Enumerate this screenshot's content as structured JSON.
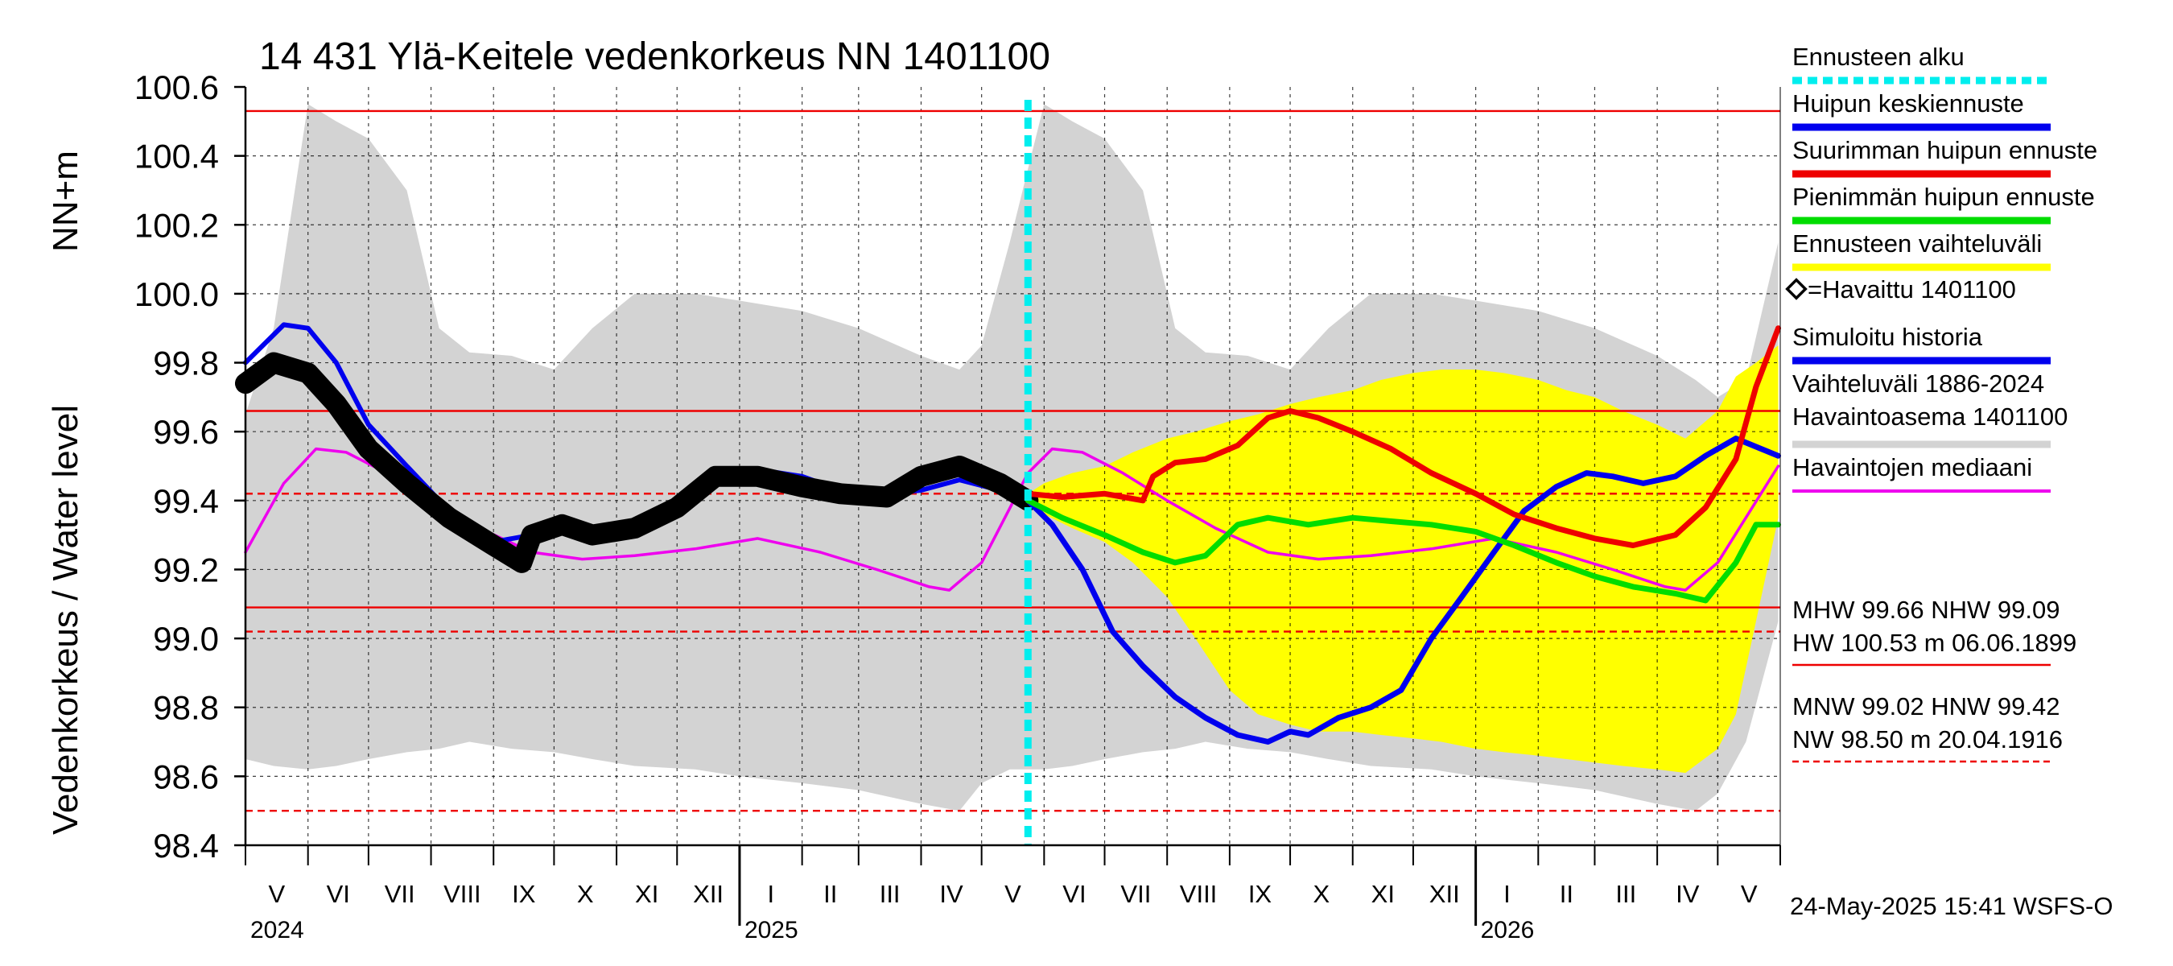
{
  "chart_data": {
    "type": "line",
    "title": "14 431 Ylä-Keitele vedenkorkeus NN 1401100",
    "ylabel_left": "Vedenkorkeus / Water level",
    "ylabel_unit": "NN+m",
    "ylim": [
      98.4,
      100.6
    ],
    "yticks": [
      "100.6",
      "100.4",
      "100.2",
      "100.0",
      "99.8",
      "99.6",
      "99.4",
      "99.2",
      "99.0",
      "98.8",
      "98.6",
      "98.4"
    ],
    "grid": true,
    "x_start": "2024-05-01",
    "x_end": "2026-05-31",
    "months": [
      "V",
      "VI",
      "VII",
      "VIII",
      "IX",
      "X",
      "XI",
      "XII",
      "I",
      "II",
      "III",
      "IV",
      "V",
      "VI",
      "VII",
      "VIII",
      "IX",
      "X",
      "XI",
      "XII",
      "I",
      "II",
      "III",
      "IV",
      "V"
    ],
    "years": [
      "2024",
      "2025",
      "2026"
    ],
    "forecast_start": "2025-05-24",
    "reference_lines": [
      {
        "name": "HW",
        "value": 100.53,
        "style": "solid"
      },
      {
        "name": "MHW",
        "value": 99.66,
        "style": "solid"
      },
      {
        "name": "HNW",
        "value": 99.42,
        "style": "dashed"
      },
      {
        "name": "NHW",
        "value": 99.09,
        "style": "solid"
      },
      {
        "name": "MNW",
        "value": 99.02,
        "style": "dashed"
      },
      {
        "name": "NW",
        "value": 98.5,
        "style": "dashed"
      }
    ],
    "series": [
      {
        "name": "Vaihteluväli 1886-2024",
        "kind": "band",
        "color": "#d3d3d3",
        "x": [
          "2024-05-01",
          "2024-05-15",
          "2024-06-01",
          "2024-06-15",
          "2024-07-01",
          "2024-07-20",
          "2024-08-05",
          "2024-08-20",
          "2024-09-10",
          "2024-10-01",
          "2024-10-20",
          "2024-11-10",
          "2024-12-10",
          "2025-01-01",
          "2025-02-01",
          "2025-03-01",
          "2025-04-01",
          "2025-04-20",
          "2025-05-01",
          "2025-05-15",
          "2025-06-01",
          "2025-06-15",
          "2025-07-01",
          "2025-07-20",
          "2025-08-05",
          "2025-08-20",
          "2025-09-10",
          "2025-10-01",
          "2025-10-20",
          "2025-11-10",
          "2025-12-10",
          "2026-01-01",
          "2026-02-01",
          "2026-03-01",
          "2026-04-01",
          "2026-04-20",
          "2026-05-01",
          "2026-05-15",
          "2026-05-31"
        ],
        "upper": [
          99.65,
          99.9,
          100.55,
          100.5,
          100.45,
          100.3,
          99.9,
          99.83,
          99.82,
          99.78,
          99.9,
          100.0,
          100.0,
          99.98,
          99.95,
          99.9,
          99.82,
          99.78,
          99.85,
          100.15,
          100.55,
          100.5,
          100.45,
          100.3,
          99.9,
          99.83,
          99.82,
          99.78,
          99.9,
          100.0,
          100.0,
          99.98,
          99.95,
          99.9,
          99.82,
          99.75,
          99.7,
          99.75,
          100.15
        ],
        "lower": [
          98.65,
          98.63,
          98.62,
          98.63,
          98.65,
          98.67,
          98.68,
          98.7,
          98.68,
          98.67,
          98.65,
          98.63,
          98.62,
          98.6,
          98.58,
          98.56,
          98.52,
          98.5,
          98.58,
          98.62,
          98.62,
          98.63,
          98.65,
          98.67,
          98.68,
          98.7,
          98.68,
          98.67,
          98.65,
          98.63,
          98.62,
          98.6,
          98.58,
          98.56,
          98.52,
          98.5,
          98.55,
          98.7,
          99.05
        ]
      },
      {
        "name": "Ennusteen vaihteluväli",
        "kind": "band",
        "color": "#ffff00",
        "x": [
          "2025-05-24",
          "2025-06-01",
          "2025-06-15",
          "2025-07-01",
          "2025-07-15",
          "2025-08-01",
          "2025-08-15",
          "2025-09-01",
          "2025-09-15",
          "2025-10-01",
          "2025-10-15",
          "2025-11-01",
          "2025-11-15",
          "2025-12-01",
          "2025-12-15",
          "2026-01-01",
          "2026-01-15",
          "2026-02-01",
          "2026-02-15",
          "2026-03-01",
          "2026-03-15",
          "2026-04-01",
          "2026-04-15",
          "2026-05-01",
          "2026-05-10",
          "2026-05-20",
          "2026-05-31"
        ],
        "upper": [
          99.42,
          99.45,
          99.48,
          99.5,
          99.54,
          99.58,
          99.6,
          99.63,
          99.65,
          99.68,
          99.7,
          99.72,
          99.75,
          99.77,
          99.78,
          99.78,
          99.77,
          99.75,
          99.72,
          99.7,
          99.66,
          99.62,
          99.58,
          99.66,
          99.76,
          99.8,
          99.85
        ],
        "lower": [
          99.4,
          99.36,
          99.32,
          99.28,
          99.22,
          99.12,
          99.0,
          98.85,
          98.78,
          98.75,
          98.73,
          98.73,
          98.72,
          98.71,
          98.7,
          98.68,
          98.67,
          98.66,
          98.65,
          98.64,
          98.63,
          98.62,
          98.61,
          98.68,
          98.78,
          99.05,
          99.35
        ]
      },
      {
        "name": "Havaintojen mediaani",
        "kind": "line",
        "color": "#ee00ee",
        "x": [
          "2024-05-01",
          "2024-05-20",
          "2024-06-05",
          "2024-06-20",
          "2024-07-10",
          "2024-08-01",
          "2024-08-25",
          "2024-09-20",
          "2024-10-15",
          "2024-11-10",
          "2024-12-10",
          "2025-01-10",
          "2025-02-10",
          "2025-03-10",
          "2025-04-05",
          "2025-04-15",
          "2025-05-01",
          "2025-05-24",
          "2025-06-05",
          "2025-06-20",
          "2025-07-10",
          "2025-08-01",
          "2025-08-25",
          "2025-09-20",
          "2025-10-15",
          "2025-11-10",
          "2025-12-10",
          "2026-01-10",
          "2026-02-10",
          "2026-03-10",
          "2026-04-05",
          "2026-04-15",
          "2026-05-01",
          "2026-05-31"
        ],
        "y": [
          99.25,
          99.45,
          99.55,
          99.54,
          99.48,
          99.4,
          99.32,
          99.25,
          99.23,
          99.24,
          99.26,
          99.29,
          99.25,
          99.2,
          99.15,
          99.14,
          99.22,
          99.48,
          99.55,
          99.54,
          99.48,
          99.4,
          99.32,
          99.25,
          99.23,
          99.24,
          99.26,
          99.29,
          99.25,
          99.2,
          99.15,
          99.14,
          99.22,
          99.5
        ]
      },
      {
        "name": "Simuloitu historia",
        "kind": "line",
        "color": "#0000ee",
        "x": [
          "2024-05-01",
          "2024-05-20",
          "2024-06-01",
          "2024-06-15",
          "2024-07-01",
          "2024-07-20",
          "2024-08-10",
          "2024-09-01",
          "2024-09-20",
          "2024-10-05",
          "2024-10-20",
          "2024-11-10",
          "2024-12-01",
          "2024-12-20",
          "2025-01-10",
          "2025-02-01",
          "2025-02-20",
          "2025-03-15",
          "2025-04-01",
          "2025-04-20",
          "2025-05-10",
          "2025-05-24"
        ],
        "y": [
          99.8,
          99.91,
          99.9,
          99.8,
          99.62,
          99.5,
          99.37,
          99.28,
          99.3,
          99.33,
          99.31,
          99.33,
          99.4,
          99.48,
          99.49,
          99.47,
          99.43,
          99.42,
          99.43,
          99.46,
          99.43,
          99.41
        ]
      },
      {
        "name": "Havaittu 1401100",
        "kind": "line",
        "color": "#000000",
        "x": [
          "2024-05-01",
          "2024-05-15",
          "2024-06-01",
          "2024-06-15",
          "2024-07-01",
          "2024-07-20",
          "2024-08-10",
          "2024-09-01",
          "2024-09-15",
          "2024-09-20",
          "2024-10-05",
          "2024-10-20",
          "2024-11-10",
          "2024-12-01",
          "2024-12-20",
          "2025-01-10",
          "2025-02-01",
          "2025-02-20",
          "2025-03-15",
          "2025-04-01",
          "2025-04-20",
          "2025-05-10",
          "2025-05-24"
        ],
        "y": [
          99.74,
          99.8,
          99.77,
          99.68,
          99.55,
          99.45,
          99.35,
          99.27,
          99.22,
          99.3,
          99.33,
          99.3,
          99.32,
          99.38,
          99.47,
          99.47,
          99.44,
          99.42,
          99.41,
          99.47,
          99.5,
          99.45,
          99.4
        ]
      },
      {
        "name": "Huipun keskiennuste",
        "kind": "line",
        "color": "#0000ee",
        "x": [
          "2025-05-24",
          "2025-06-05",
          "2025-06-20",
          "2025-07-05",
          "2025-07-20",
          "2025-08-05",
          "2025-08-20",
          "2025-09-05",
          "2025-09-20",
          "2025-10-01",
          "2025-10-10",
          "2025-10-25",
          "2025-11-10",
          "2025-11-25",
          "2025-12-10",
          "2025-12-25",
          "2026-01-10",
          "2026-01-25",
          "2026-02-10",
          "2026-02-25",
          "2026-03-10",
          "2026-03-25",
          "2026-04-10",
          "2026-04-25",
          "2026-05-10",
          "2026-05-31"
        ],
        "y": [
          99.4,
          99.33,
          99.2,
          99.02,
          98.92,
          98.83,
          98.77,
          98.72,
          98.7,
          98.73,
          98.72,
          98.77,
          98.8,
          98.85,
          99.0,
          99.12,
          99.25,
          99.37,
          99.44,
          99.48,
          99.47,
          99.45,
          99.47,
          99.53,
          99.58,
          99.53
        ]
      },
      {
        "name": "Suurimman huipun ennuste",
        "kind": "line",
        "color": "#ee0000",
        "x": [
          "2025-05-24",
          "2025-06-10",
          "2025-07-01",
          "2025-07-20",
          "2025-07-25",
          "2025-08-05",
          "2025-08-20",
          "2025-09-05",
          "2025-09-20",
          "2025-10-01",
          "2025-10-15",
          "2025-11-01",
          "2025-11-20",
          "2025-12-10",
          "2026-01-01",
          "2026-01-20",
          "2026-02-10",
          "2026-03-01",
          "2026-03-20",
          "2026-04-10",
          "2026-04-25",
          "2026-05-10",
          "2026-05-20",
          "2026-05-31"
        ],
        "y": [
          99.42,
          99.41,
          99.42,
          99.4,
          99.47,
          99.51,
          99.52,
          99.56,
          99.64,
          99.66,
          99.64,
          99.6,
          99.55,
          99.48,
          99.42,
          99.36,
          99.32,
          99.29,
          99.27,
          99.3,
          99.38,
          99.52,
          99.73,
          99.9
        ]
      },
      {
        "name": "Pienimmän huipun ennuste",
        "kind": "line",
        "color": "#00dd00",
        "x": [
          "2025-05-24",
          "2025-06-10",
          "2025-07-01",
          "2025-07-20",
          "2025-08-05",
          "2025-08-20",
          "2025-09-05",
          "2025-09-20",
          "2025-10-10",
          "2025-11-01",
          "2025-11-20",
          "2025-12-10",
          "2026-01-01",
          "2026-01-20",
          "2026-02-10",
          "2026-03-01",
          "2026-03-20",
          "2026-04-10",
          "2026-04-25",
          "2026-05-10",
          "2026-05-20",
          "2026-05-31"
        ],
        "y": [
          99.4,
          99.35,
          99.3,
          99.25,
          99.22,
          99.24,
          99.33,
          99.35,
          99.33,
          99.35,
          99.34,
          99.33,
          99.31,
          99.27,
          99.22,
          99.18,
          99.15,
          99.13,
          99.11,
          99.22,
          99.33,
          99.33
        ]
      }
    ],
    "legend": [
      {
        "label": "Ennusteen alku",
        "color": "#00eeee",
        "style": "dotted"
      },
      {
        "label": "Huipun keskiennuste",
        "color": "#0000ee",
        "style": "solid"
      },
      {
        "label": "Suurimman huipun ennuste",
        "color": "#ee0000",
        "style": "solid"
      },
      {
        "label": "Pienimmän huipun ennuste",
        "color": "#00dd00",
        "style": "solid"
      },
      {
        "label": "Ennusteen vaihteluväli",
        "color": "#ffff00",
        "style": "solid"
      },
      {
        "label": "=Havaittu 1401100",
        "color": "#000000",
        "style": "marker"
      },
      {
        "label": "Simuloitu historia",
        "color": "#0000ee",
        "style": "solid"
      },
      {
        "label": "Vaihteluväli 1886-2024",
        "label2": " Havaintoasema 1401100",
        "color": "#d3d3d3",
        "style": "solid"
      },
      {
        "label": "Havaintojen mediaani",
        "color": "#ee00ee",
        "style": "solid"
      }
    ],
    "stats": [
      {
        "line1": "MHW  99.66 NHW  99.09",
        "line2": "HW 100.53 m 06.06.1899",
        "color": "#ee0000",
        "style": "solid"
      },
      {
        "line1": "MNW  99.02 HNW  99.42",
        "line2": "NW  98.50 m 20.04.1916",
        "color": "#ee0000",
        "style": "dashed"
      }
    ],
    "footer": "24-May-2025 15:41 WSFS-O"
  }
}
